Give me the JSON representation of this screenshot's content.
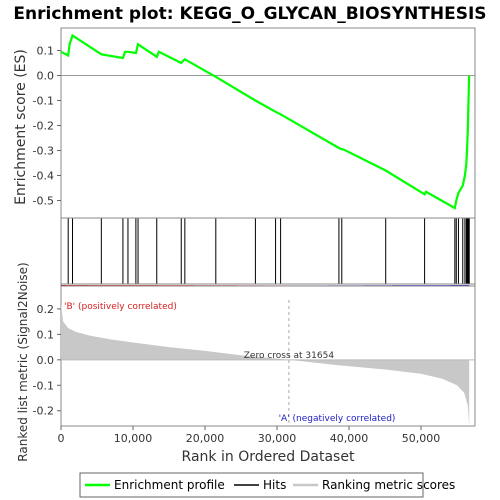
{
  "chart_data": {
    "type": "line",
    "title": "Enrichment plot: KEGG_O_GLYCAN_BIOSYNTHESIS",
    "top_panel": {
      "ylabel": "Enrichment score (ES)",
      "ylim": [
        -0.57,
        0.19
      ],
      "yticks": [
        -0.5,
        -0.4,
        -0.3,
        -0.2,
        -0.1,
        0.0,
        0.1
      ],
      "series": [
        {
          "name": "Enrichment profile",
          "color": "#00ff00",
          "x": [
            0,
            1000,
            1200,
            1600,
            5600,
            8600,
            8900,
            9300,
            10400,
            10700,
            13300,
            13600,
            16700,
            17000,
            17200,
            21500,
            27000,
            29800,
            30500,
            38600,
            39000,
            39200,
            45100,
            50500,
            50700,
            54700,
            54900,
            55200,
            55800,
            56100,
            56300,
            56400,
            56500,
            56600,
            56700
          ],
          "y": [
            0.095,
            0.08,
            0.125,
            0.16,
            0.085,
            0.07,
            0.095,
            0.095,
            0.09,
            0.125,
            0.075,
            0.095,
            0.05,
            0.06,
            0.065,
            -0.005,
            -0.1,
            -0.145,
            -0.155,
            -0.29,
            -0.295,
            -0.295,
            -0.38,
            -0.475,
            -0.465,
            -0.53,
            -0.5,
            -0.47,
            -0.44,
            -0.4,
            -0.35,
            -0.29,
            -0.22,
            -0.1,
            0.0
          ]
        }
      ]
    },
    "hits": {
      "name": "Hits",
      "x": [
        1000,
        1600,
        5600,
        8600,
        9300,
        10400,
        10700,
        13300,
        16700,
        17200,
        21500,
        27000,
        29800,
        30500,
        38600,
        39000,
        45100,
        50500,
        54700,
        54900,
        55200,
        55800,
        56100,
        56300,
        56400,
        56500,
        56600,
        56700
      ]
    },
    "bottom_panel": {
      "ylabel": "Ranked list metric (Signal2Noise)",
      "xlabel": "Rank in Ordered Dataset",
      "ylim": [
        -0.26,
        0.29
      ],
      "yticks": [
        -0.2,
        -0.1,
        0.0,
        0.1,
        0.2
      ],
      "xlim": [
        0,
        57500
      ],
      "xticks": [
        0,
        10000,
        20000,
        30000,
        40000,
        50000
      ],
      "xtick_labels": [
        "0",
        "10,000",
        "20,000",
        "30,000",
        "40,000",
        "50,000"
      ],
      "zero_cross": 31654,
      "zero_cross_label": "Zero cross at 31654",
      "positive_label": "'B' (positively correlated)",
      "negative_label": "'A' (negatively correlated)",
      "metric_profile": {
        "x": [
          0,
          300,
          1000,
          2000,
          4000,
          7000,
          10000,
          15000,
          20000,
          25000,
          31654,
          38000,
          45000,
          50000,
          53000,
          55000,
          56000,
          56500,
          56700
        ],
        "y": [
          0.22,
          0.15,
          0.125,
          0.11,
          0.095,
          0.08,
          0.068,
          0.05,
          0.035,
          0.018,
          0.0,
          -0.02,
          -0.038,
          -0.055,
          -0.075,
          -0.1,
          -0.13,
          -0.18,
          -0.26
        ]
      },
      "colors": {
        "fill": "#c8c8c8",
        "zero_line": "#bbbbbb",
        "positive_label": "#d42020",
        "negative_label": "#2020c8"
      }
    },
    "ranking_bar": {
      "segments": [
        {
          "x0": 0,
          "x1": 800,
          "color": "#cc0000"
        },
        {
          "x0": 800,
          "x1": 3800,
          "color": "#e22a2a"
        },
        {
          "x0": 3800,
          "x1": 13500,
          "color": "#ec4848"
        },
        {
          "x0": 13500,
          "x1": 18500,
          "color": "#f36a6a"
        },
        {
          "x0": 18500,
          "x1": 24500,
          "color": "#f79595"
        },
        {
          "x0": 24500,
          "x1": 28000,
          "color": "#f9bcd8"
        },
        {
          "x0": 28000,
          "x1": 31654,
          "color": "#fbd6ee"
        },
        {
          "x0": 31654,
          "x1": 37000,
          "color": "#e2e0f8"
        },
        {
          "x0": 37000,
          "x1": 42000,
          "color": "#c3c1f2"
        },
        {
          "x0": 42000,
          "x1": 46000,
          "color": "#9a98ec"
        },
        {
          "x0": 46000,
          "x1": 54000,
          "color": "#6260e0"
        },
        {
          "x0": 54000,
          "x1": 56700,
          "color": "#2a22c8"
        }
      ]
    },
    "legend": {
      "items": [
        {
          "label": "Enrichment profile",
          "color": "#00ff00"
        },
        {
          "label": "Hits",
          "color": "#000000"
        },
        {
          "label": "Ranking metric scores",
          "color": "#c8c8c8"
        }
      ]
    }
  }
}
